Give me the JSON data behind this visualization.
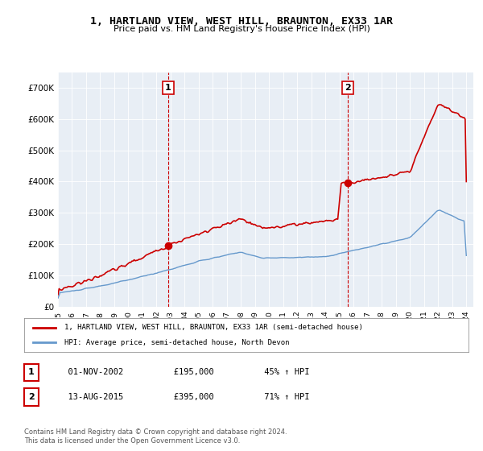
{
  "title": "1, HARTLAND VIEW, WEST HILL, BRAUNTON, EX33 1AR",
  "subtitle": "Price paid vs. HM Land Registry's House Price Index (HPI)",
  "ylabel_ticks": [
    "£0",
    "£100K",
    "£200K",
    "£300K",
    "£400K",
    "£500K",
    "£600K",
    "£700K"
  ],
  "ytick_values": [
    0,
    100000,
    200000,
    300000,
    400000,
    500000,
    600000,
    700000
  ],
  "ylim": [
    0,
    750000
  ],
  "background_color": "#e8eef5",
  "plot_bg_color": "#e8eef5",
  "red_color": "#cc0000",
  "blue_color": "#6699cc",
  "sale1_date_idx": 7.83,
  "sale1_value": 195000,
  "sale1_label": "1",
  "sale2_date_idx": 20.62,
  "sale2_value": 395000,
  "sale2_label": "2",
  "legend_line1": "1, HARTLAND VIEW, WEST HILL, BRAUNTON, EX33 1AR (semi-detached house)",
  "legend_line2": "HPI: Average price, semi-detached house, North Devon",
  "table_row1": [
    "1",
    "01-NOV-2002",
    "£195,000",
    "45% ↑ HPI"
  ],
  "table_row2": [
    "2",
    "13-AUG-2015",
    "£395,000",
    "71% ↑ HPI"
  ],
  "footer": "Contains HM Land Registry data © Crown copyright and database right 2024.\nThis data is licensed under the Open Government Licence v3.0.",
  "xticklabels": [
    "1995",
    "1996",
    "1997",
    "1998",
    "1999",
    "2000",
    "2001",
    "2002",
    "2003",
    "2004",
    "2005",
    "2006",
    "2007",
    "2008",
    "2009",
    "2010",
    "2011",
    "2012",
    "2013",
    "2014",
    "2015",
    "2016",
    "2017",
    "2018",
    "2019",
    "2020",
    "2021",
    "2022",
    "2023",
    "2024"
  ]
}
